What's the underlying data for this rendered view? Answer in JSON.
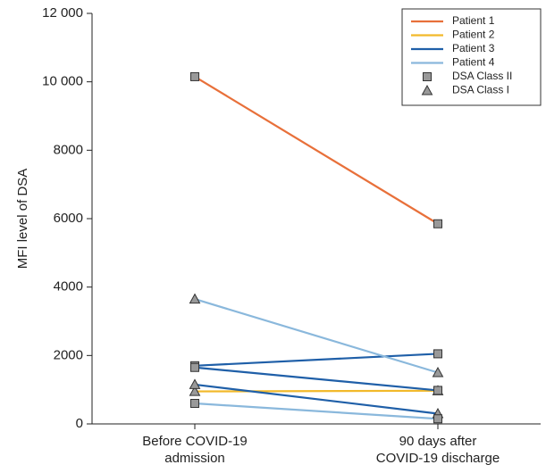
{
  "chart_data": {
    "type": "line",
    "y_label": "MFI level of DSA",
    "categories": [
      "Before COVID-19\nadmission",
      "90 days after\nCOVID-19 discharge"
    ],
    "ylim": [
      0,
      12000
    ],
    "yticks": [
      0,
      2000,
      4000,
      6000,
      8000,
      {
        "value": 10000,
        "label": "10 000"
      },
      {
        "value": 12000,
        "label": "12 000"
      }
    ],
    "markers": [
      {
        "name": "DSA Class II",
        "shape": "square"
      },
      {
        "name": "DSA Class I",
        "shape": "triangle"
      }
    ],
    "series": [
      {
        "name": "Patient 1",
        "color": "#e8703a",
        "shape": "square",
        "values": [
          10150,
          5850
        ]
      },
      {
        "name": "Patient 2",
        "color": "#f2b92a",
        "shape": "triangle",
        "values": [
          950,
          970
        ]
      },
      {
        "name": "Patient 3",
        "color": "#1f5fa8",
        "shape": "square",
        "values": [
          1700,
          2050
        ]
      },
      {
        "name": "Patient 3",
        "color": "#1f5fa8",
        "shape": "square",
        "values": [
          1650,
          980
        ]
      },
      {
        "name": "Patient 3",
        "color": "#1f5fa8",
        "shape": "triangle",
        "values": [
          1150,
          300
        ]
      },
      {
        "name": "Patient 4",
        "color": "#8ab8dc",
        "shape": "triangle",
        "values": [
          3650,
          1500
        ]
      },
      {
        "name": "Patient 4",
        "color": "#8ab8dc",
        "shape": "square",
        "values": [
          600,
          150
        ]
      }
    ]
  }
}
